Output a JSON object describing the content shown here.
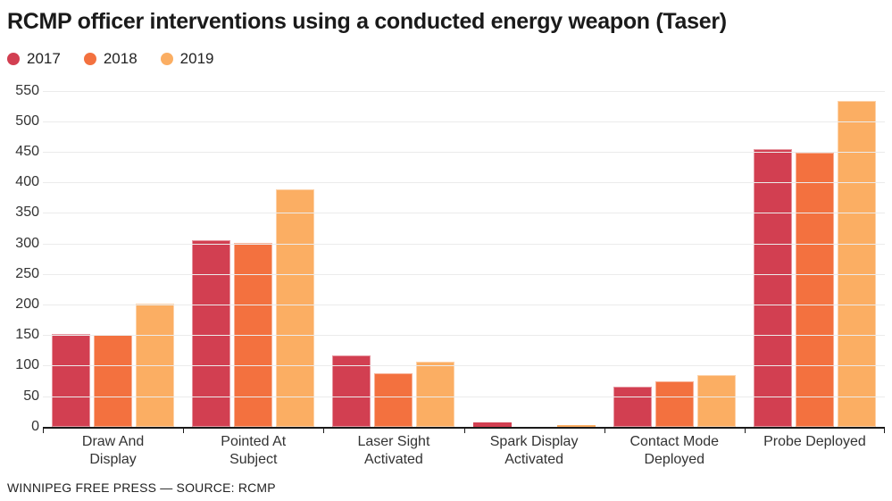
{
  "title": "RCMP officer interventions using a conducted energy weapon (Taser)",
  "source": "WINNIPEG FREE PRESS — SOURCE: RCMP",
  "chart_data": {
    "type": "bar",
    "title": "RCMP officer interventions using a conducted energy weapon (Taser)",
    "categories": [
      "Draw And\nDisplay",
      "Pointed At\nSubject",
      "Laser Sight\nActivated",
      "Spark Display\nActivated",
      "Contact Mode\nDeployed",
      "Probe Deployed"
    ],
    "series": [
      {
        "name": "2017",
        "color": "#d23f51",
        "values": [
          152,
          305,
          117,
          7,
          66,
          454
        ]
      },
      {
        "name": "2018",
        "color": "#f3713f",
        "values": [
          150,
          301,
          88,
          0,
          74,
          448
        ]
      },
      {
        "name": "2019",
        "color": "#fbae63",
        "values": [
          202,
          389,
          107,
          3,
          85,
          533
        ]
      }
    ],
    "xlabel": "",
    "ylabel": "",
    "ylim": [
      0,
      550
    ],
    "ytick_step": 50,
    "grid": "horizontal",
    "gridline_color": "#ebebeb",
    "axis_color": "#1a1a1a",
    "legend_position": "top-left"
  }
}
